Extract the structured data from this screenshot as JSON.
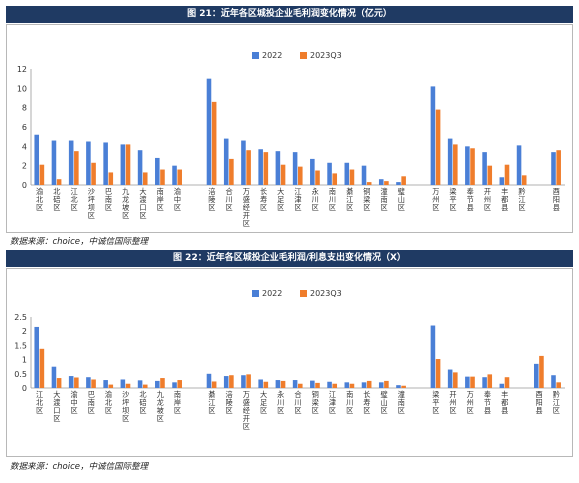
{
  "colors": {
    "series_2022": "#4a7fd6",
    "series_2023Q3": "#ef7d2c",
    "header_bg": "#1f3a63"
  },
  "figure1": {
    "title": "图 21：近年各区城投企业毛利润变化情况（亿元）",
    "source": "数据来源：choice，中诚信国际整理"
  },
  "figure2": {
    "title": "图 22：近年各区城投企业毛利润/利息支出变化情况（X）",
    "source": "数据来源：choice，中诚信国际整理"
  },
  "chart_data": [
    {
      "type": "bar",
      "title": "图 21：近年各区城投企业毛利润变化情况（亿元）",
      "xlabel": "",
      "ylabel": "",
      "ylim": [
        0,
        12
      ],
      "yticks": [
        0,
        2,
        4,
        6,
        8,
        10,
        12
      ],
      "legend": "top-center",
      "grid": false,
      "categories": [
        "渝北区",
        "北碚区",
        "江北区",
        "沙坪坝区",
        "巴南区",
        "九龙坡区",
        "大渡口区",
        "南岸区",
        "渝中区",
        "涪陵区",
        "合川区",
        "万盛经开区",
        "长寿区",
        "大足区",
        "江津区",
        "永川区",
        "南川区",
        "綦江区",
        "铜梁区",
        "潼南区",
        "璧山区",
        "万州区",
        "梁平区",
        "奉节县",
        "开州区",
        "丰都县",
        "黔江区",
        "酉阳县"
      ],
      "groups": [
        9,
        12,
        6,
        1
      ],
      "series": [
        {
          "name": "2022",
          "values": [
            5.2,
            4.6,
            4.6,
            4.5,
            4.4,
            4.2,
            3.6,
            2.8,
            2.0,
            11.0,
            4.8,
            4.6,
            3.7,
            3.5,
            3.4,
            2.7,
            2.3,
            2.3,
            2.0,
            0.6,
            0.3,
            10.2,
            4.8,
            4.0,
            3.4,
            0.8,
            4.1,
            3.4
          ]
        },
        {
          "name": "2023Q3",
          "values": [
            2.1,
            0.6,
            3.5,
            2.3,
            1.3,
            4.2,
            1.3,
            1.6,
            1.6,
            8.6,
            2.7,
            3.6,
            3.4,
            2.1,
            1.9,
            1.5,
            1.2,
            1.6,
            0.3,
            0.4,
            0.9,
            7.8,
            4.2,
            3.8,
            2.0,
            2.1,
            1.0,
            3.6
          ]
        }
      ],
      "xtick_labels": [
        "渝北区",
        "北碚区",
        "江北区",
        "沙坪坝区",
        "巴南区",
        "九龙坡区",
        "大渡口区",
        "南岸区",
        "渝中区",
        "涪陵区",
        "合川区",
        "万盛经开区",
        "长寿区",
        "大足区",
        "江津区",
        "永川区",
        "南川区",
        "綦江区",
        "铜梁区",
        "潼南区",
        "璧山区",
        "万州区",
        "梁平区",
        "奉节县",
        "开州区",
        "丰都县",
        "黔江区",
        "酉阳县"
      ]
    },
    {
      "type": "bar",
      "title": "图 22：近年各区城投企业毛利润/利息支出变化情况（X）",
      "xlabel": "",
      "ylabel": "",
      "ylim": [
        0,
        2.5
      ],
      "yticks": [
        0,
        0.5,
        1.0,
        1.5,
        2.0,
        2.5
      ],
      "legend": "top-center",
      "grid": false,
      "categories": [
        "江北区",
        "大渡口区",
        "渝中区",
        "巴南区",
        "渝北区",
        "沙坪坝区",
        "北碚区",
        "九龙坡区",
        "南岸区",
        "綦江区",
        "涪陵区",
        "万盛经开区",
        "大足区",
        "永川区",
        "合川区",
        "铜梁区",
        "江津区",
        "南川区",
        "长寿区",
        "璧山区",
        "潼南区",
        "梁平区",
        "开州区",
        "万州区",
        "奉节县",
        "丰都县",
        "酉阳县",
        "黔江区"
      ],
      "groups": [
        9,
        12,
        5,
        2
      ],
      "series": [
        {
          "name": "2022",
          "values": [
            2.15,
            0.75,
            0.42,
            0.38,
            0.28,
            0.3,
            0.27,
            0.25,
            0.2,
            0.5,
            0.42,
            0.45,
            0.3,
            0.28,
            0.28,
            0.26,
            0.22,
            0.2,
            0.2,
            0.2,
            0.1,
            2.2,
            0.65,
            0.4,
            0.38,
            0.15,
            0.85,
            0.45
          ]
        },
        {
          "name": "2023Q3",
          "values": [
            1.38,
            0.35,
            0.37,
            0.3,
            0.12,
            0.15,
            0.12,
            0.35,
            0.28,
            0.23,
            0.45,
            0.48,
            0.22,
            0.25,
            0.15,
            0.18,
            0.15,
            0.15,
            0.25,
            0.25,
            0.08,
            1.02,
            0.55,
            0.4,
            0.48,
            0.38,
            1.13,
            0.2
          ]
        }
      ],
      "xtick_labels": [
        "江北区",
        "大渡口区",
        "渝中区",
        "巴南区",
        "渝北区",
        "沙坪坝区",
        "北碚区",
        "九龙坡区",
        "南岸区",
        "綦江区",
        "涪陵区",
        "万盛经开区",
        "大足区",
        "永川区",
        "合川区",
        "铜梁区",
        "江津区",
        "南川区",
        "长寿区",
        "璧山区",
        "潼南区",
        "梁平区",
        "开州区",
        "万州区",
        "奉节县",
        "丰都县",
        "酉阳县",
        "黔江区"
      ]
    }
  ]
}
